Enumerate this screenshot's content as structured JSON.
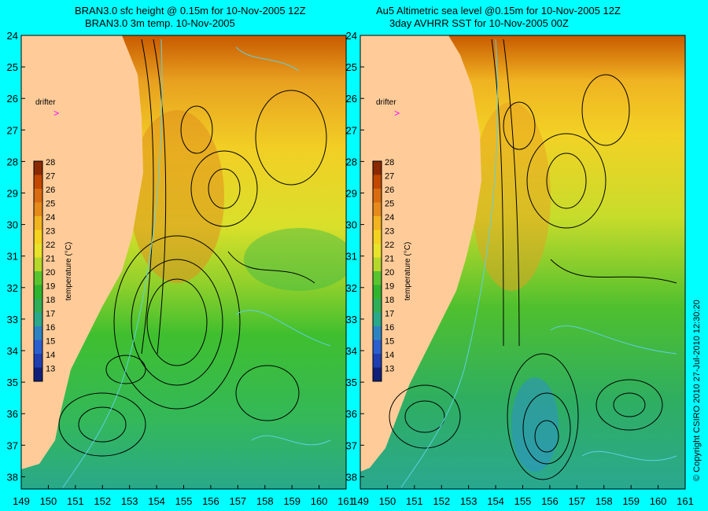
{
  "panels": [
    {
      "title_line1": "BRAN3.0 sfc height @ 0.15m for 10-Nov-2005 12Z",
      "title_line2": "BRAN3.0 3m temp. 10-Nov-2005"
    },
    {
      "title_line1": "Au5 Altimetric sea level  @0.15m  for 10-Nov-2005 12Z",
      "title_line2": "3day AVHRR SST for 10-Nov-2005 00Z"
    }
  ],
  "drifter_label": "drifter",
  "colorbar": {
    "label": "temperature (°C)",
    "ticks": [
      "28",
      "27",
      "26",
      "25",
      "24",
      "23",
      "22",
      "21",
      "20",
      "19",
      "18",
      "17",
      "16",
      "15",
      "14",
      "13"
    ],
    "colors": [
      "#8b2a00",
      "#c24800",
      "#d96b10",
      "#e68a1a",
      "#f2b320",
      "#f5d21f",
      "#e9e22a",
      "#b5d82b",
      "#59c52e",
      "#2fb42e",
      "#2fae58",
      "#2aa88a",
      "#2d83c2",
      "#2a5fd0",
      "#1f3fb0",
      "#10207a"
    ]
  },
  "latitude_ticks": [
    "24",
    "25",
    "26",
    "27",
    "28",
    "29",
    "30",
    "31",
    "32",
    "33",
    "34",
    "35",
    "36",
    "37",
    "38"
  ],
  "longitude_ticks": [
    "149",
    "150",
    "151",
    "152",
    "153",
    "154",
    "155",
    "156",
    "157",
    "158",
    "159",
    "160",
    "161"
  ],
  "copyright": "© Copyright CSIRO 2010   27-Jul-2010 12:30:20"
}
